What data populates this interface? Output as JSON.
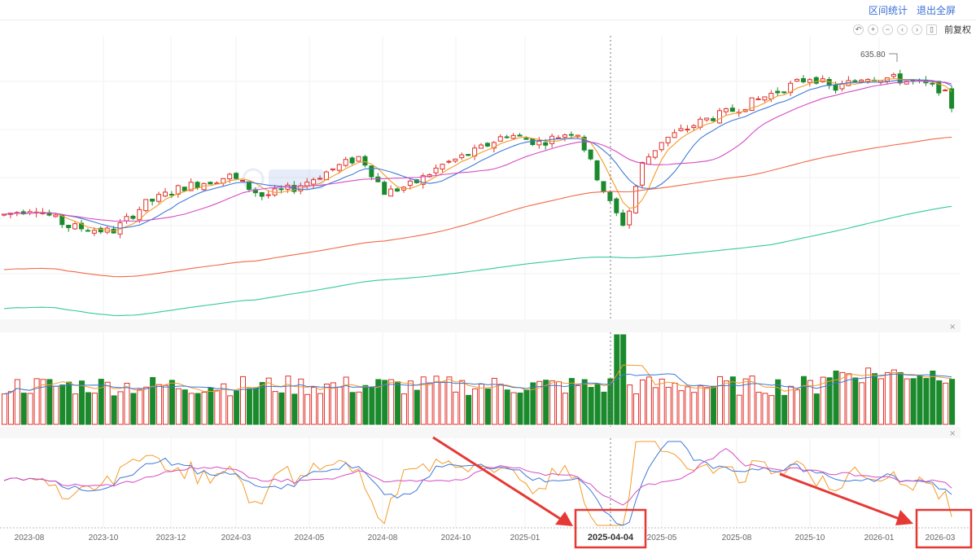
{
  "header": {
    "interval_stats_label": "区间统计",
    "exit_fullscreen_label": "退出全屏"
  },
  "toolbar": {
    "icons": [
      "undo-icon",
      "zoom-in-icon",
      "zoom-out-icon",
      "chevron-left-icon",
      "chevron-right-icon",
      "candle-type-icon"
    ],
    "adjust_label": "前复权"
  },
  "colors": {
    "up": "#e0322b",
    "down": "#1a8a2d",
    "ma5": "#f39c2a",
    "ma10": "#3f7ad8",
    "ma20": "#d44cc4",
    "ma60": "#f06a4a",
    "ma120": "#35c9a0",
    "annotation": "#e53935"
  },
  "chart_data": {
    "type": "candlestick",
    "title": "",
    "x_tick_labels": [
      "2023-08",
      "2023-10",
      "2023-12",
      "2024-03",
      "2024-05",
      "2024-08",
      "2024-10",
      "2025-01",
      "2025-04-04",
      "2025-05",
      "2025-08",
      "2025-10",
      "2026-01",
      "2026-03"
    ],
    "highlighted_date": "2025-04-04",
    "max_price_label": "635.80",
    "ylim": [
      320,
      660
    ],
    "candles": [],
    "volume": [],
    "oscillator": [],
    "subpanel_close_label": "×"
  }
}
